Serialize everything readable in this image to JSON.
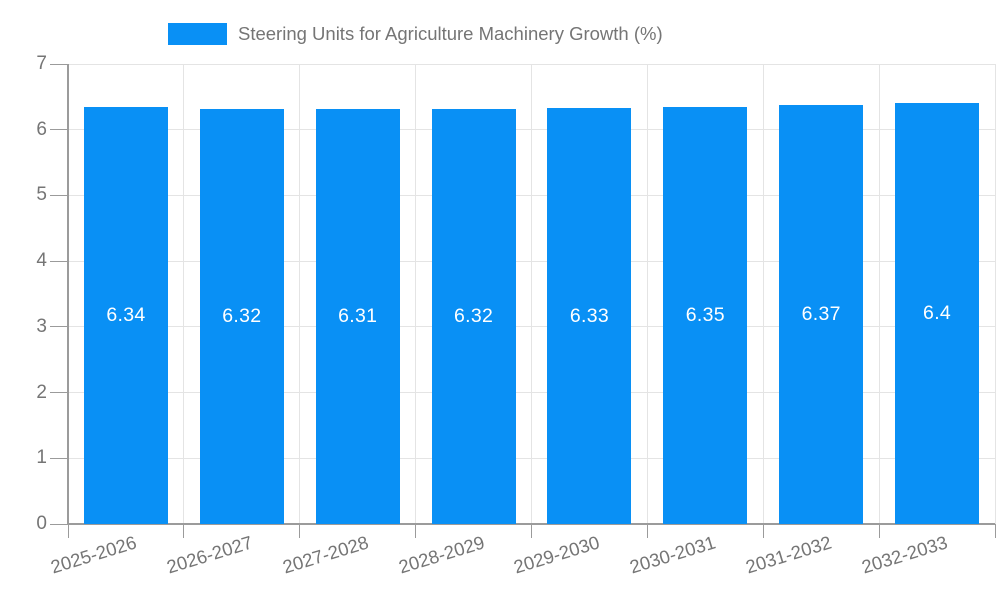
{
  "chart_data": {
    "type": "bar",
    "title": "Steering Units for Agriculture Machinery Growth (%)",
    "xlabel": "",
    "ylabel": "",
    "categories": [
      "2025-2026",
      "2026-2027",
      "2027-2028",
      "2028-2029",
      "2029-2030",
      "2030-2031",
      "2031-2032",
      "2032-2033"
    ],
    "values": [
      6.34,
      6.32,
      6.31,
      6.32,
      6.33,
      6.35,
      6.37,
      6.4
    ],
    "bar_labels": [
      "6.34",
      "6.32",
      "6.31",
      "6.32",
      "6.33",
      "6.35",
      "6.37",
      "6.4"
    ],
    "ylim": [
      0,
      7
    ],
    "yticks": [
      0,
      1,
      2,
      3,
      4,
      5,
      6,
      7
    ],
    "grid": true,
    "legend_position": "top"
  },
  "colors": {
    "bar": "#0990f5",
    "grid": "#e4e4e4",
    "axis": "#9b9b9b",
    "text": "#757575",
    "bar_label": "#ffffff",
    "background": "#ffffff"
  }
}
